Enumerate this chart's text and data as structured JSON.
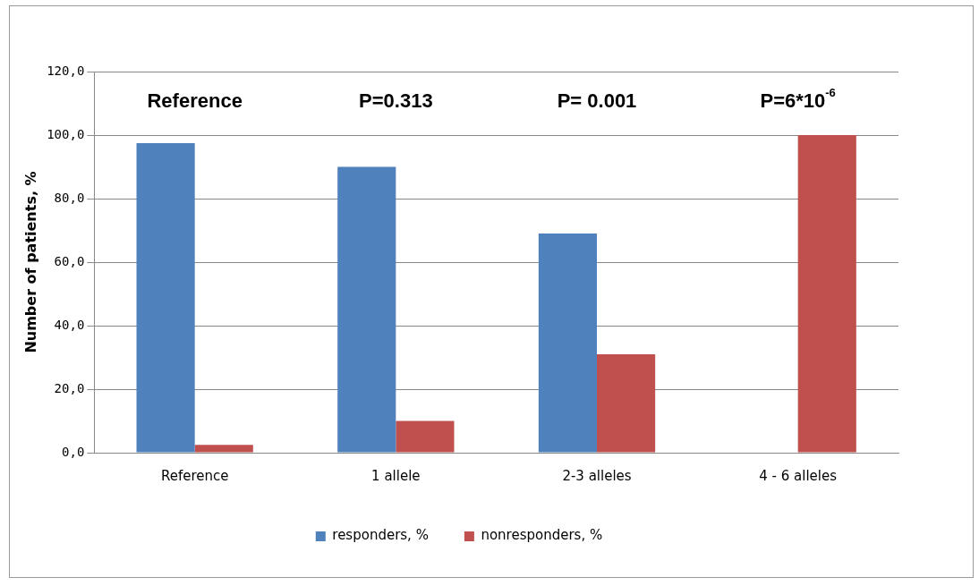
{
  "chart_data": {
    "type": "bar",
    "ylabel": "Number of patients, %",
    "categories": [
      "Reference",
      "1 allele",
      "2-3 alleles",
      "4 - 6 alleles"
    ],
    "series": [
      {
        "name": "responders, %",
        "color": "#4f81bd",
        "values": [
          97.5,
          90.0,
          69.0,
          0
        ]
      },
      {
        "name": "nonresponders, %",
        "color": "#c0504d",
        "values": [
          2.5,
          10.0,
          31.0,
          100.0
        ]
      }
    ],
    "ylim": [
      0,
      120
    ],
    "yticks": [
      {
        "value": 0,
        "label": "0,0"
      },
      {
        "value": 20,
        "label": "20,0"
      },
      {
        "value": 40,
        "label": "40,0"
      },
      {
        "value": 60,
        "label": "60,0"
      },
      {
        "value": 80,
        "label": "80,0"
      },
      {
        "value": 100,
        "label": "100,0"
      },
      {
        "value": 120,
        "label": "120,0"
      }
    ],
    "grid": "y",
    "legend": "bottom",
    "annotations": [
      "Reference",
      "P=0.313",
      "P= 0.001",
      "P=6*10$^{-6}$"
    ]
  }
}
